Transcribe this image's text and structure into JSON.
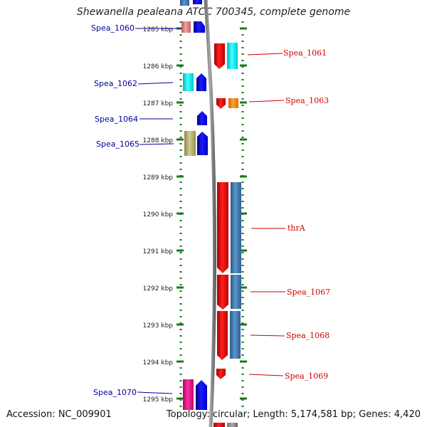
{
  "title": "Shewanella pealeana ATCC 700345, complete genome",
  "accession": "Accession: NC_009901",
  "topology": "Topology: circular; Length: 5,174,581 bp; Genes: 4,420",
  "scale_labels": [
    "1285 kbp",
    "1286 kbp",
    "1287 kbp",
    "1288 kbp",
    "1289 kbp",
    "1290 kbp",
    "1291 kbp",
    "1292 kbp",
    "1293 kbp",
    "1294 kbp",
    "1295 kbp"
  ],
  "gene_labels": {
    "spea_1060": "Spea_1060",
    "spea_1061": "Spea_1061",
    "spea_1062": "Spea_1062",
    "spea_1063": "Spea_1063",
    "spea_1064": "Spea_1064",
    "spea_1065": "Spea_1065",
    "thra": "thrA",
    "spea_1067": "Spea_1067",
    "spea_1068": "Spea_1068",
    "spea_1069": "Spea_1069",
    "spea_1070": "Spea_1070"
  },
  "colors": {
    "left_label": "#00009c",
    "right_label": "#cc0000",
    "tick": "#1a7a1a",
    "forward_gene": "#0000ee",
    "reverse_gene": "#ee0000",
    "steelblue_gene": "#3f77b0",
    "cyan_gene": "#00e5ee",
    "orange_gene": "#ff8c00",
    "khaki_gene": "#b5ad70",
    "pink_gene": "#f00088",
    "salmon_gene": "#e87c80"
  }
}
